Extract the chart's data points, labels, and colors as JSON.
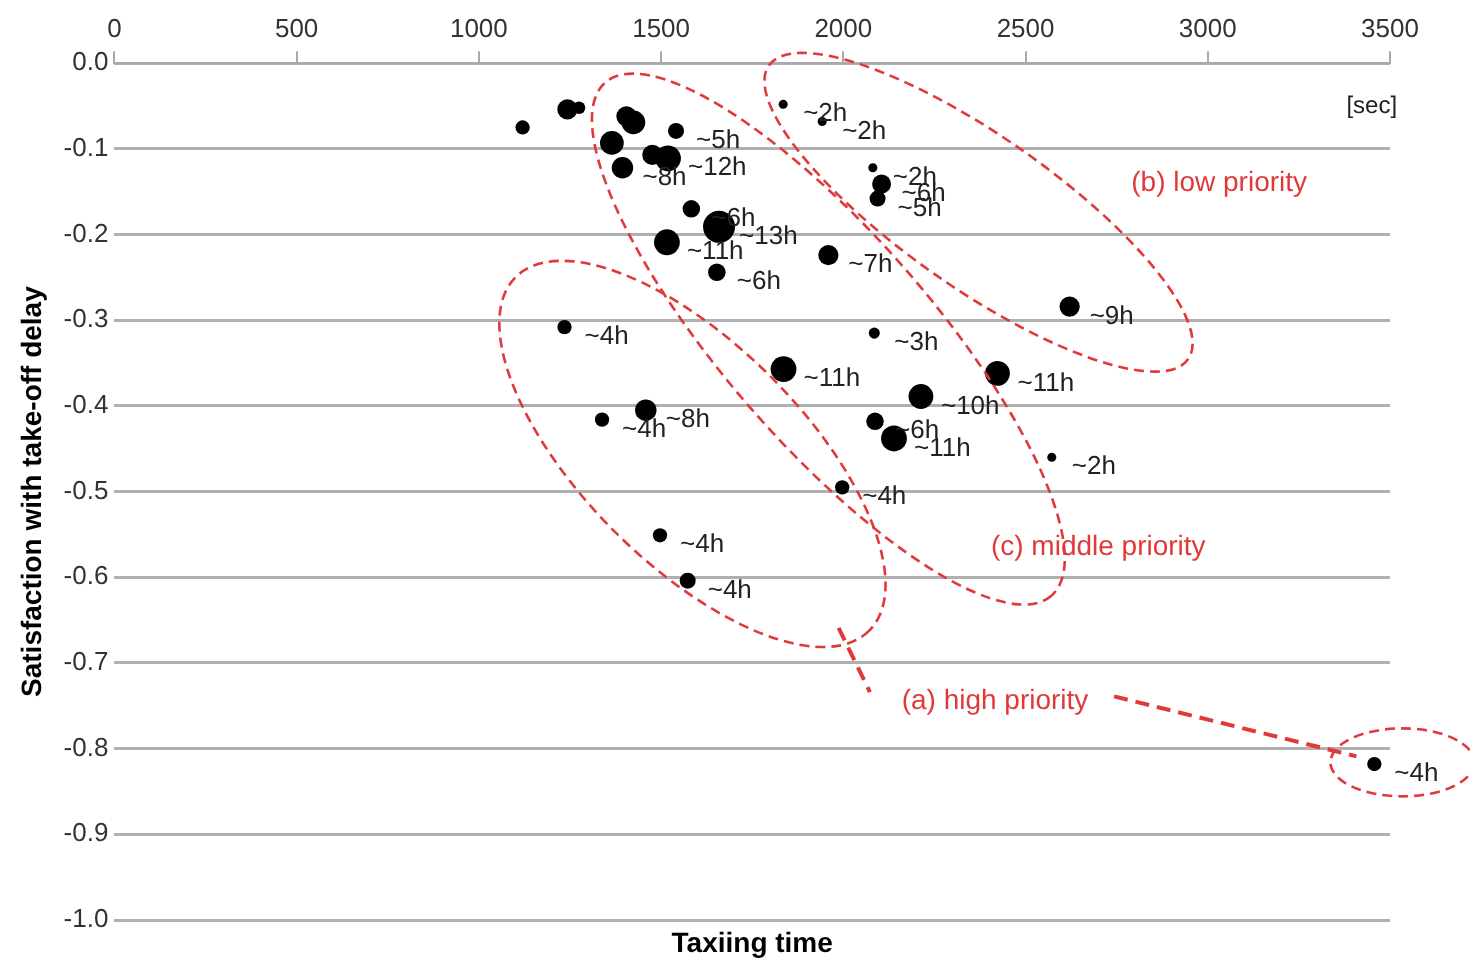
{
  "chart_data": {
    "type": "bubble",
    "xlabel": "Taxiing time",
    "ylabel": "Satisfaction with take-off delay",
    "xlim": [
      0,
      3500
    ],
    "xticks": [
      0,
      500,
      1000,
      1500,
      2000,
      2500,
      3000,
      3500
    ],
    "ylim": [
      -1,
      0
    ],
    "yticks": [
      {
        "value": 0,
        "label": "0.0"
      },
      -0.1,
      -0.2,
      -0.3,
      -0.4,
      -0.5,
      -0.6,
      -0.7,
      -0.8,
      -0.9,
      {
        "value": -1,
        "label": "-1.0"
      }
    ],
    "grid": "y",
    "legend": false,
    "marker": "circle",
    "series": [
      {
        "color": "#000000",
        "x": [
          1120,
          1243,
          1275,
          1405,
          1424,
          1541,
          1365,
          1476,
          1519,
          1394,
          1583,
          1659,
          1516,
          1653,
          1959,
          1835,
          1942,
          2081,
          2105,
          2094,
          1235,
          2085,
          1836,
          1458,
          2213,
          2621,
          2423,
          2087,
          2139,
          2572,
          1997,
          1338,
          1497,
          1573,
          3457
        ],
        "values": [
          -0.075,
          -0.054,
          -0.052,
          -0.062,
          -0.069,
          -0.079,
          -0.093,
          -0.107,
          -0.111,
          -0.122,
          -0.17,
          -0.191,
          -0.209,
          -0.244,
          -0.224,
          -0.048,
          -0.068,
          -0.122,
          -0.141,
          -0.158,
          -0.308,
          -0.315,
          -0.357,
          -0.405,
          -0.389,
          -0.284,
          -0.362,
          -0.418,
          -0.438,
          -0.46,
          -0.495,
          -0.416,
          -0.551,
          -0.604,
          -0.818
        ],
        "sizes": [
          0.2,
          0.4,
          0.15,
          0.4,
          0.55,
          0.25,
          0.55,
          0.4,
          0.65,
          0.45,
          0.3,
          1,
          0.65,
          0.3,
          0.4,
          0.08,
          0.08,
          0.08,
          0.35,
          0.25,
          0.2,
          0.12,
          0.65,
          0.45,
          0.6,
          0.4,
          0.6,
          0.3,
          0.65,
          0.08,
          0.2,
          0.2,
          0.2,
          0.25,
          0.2
        ]
      }
    ],
    "annotations": [
      "[sec]",
      "(a) high priority",
      "(b) low priority",
      "(c) middle priority",
      {
        "text": "~5h",
        "x": 1541,
        "y": -0.079
      },
      {
        "text": "~12h",
        "x": 1519,
        "y": -0.111
      },
      {
        "text": "~8h",
        "x": 1394,
        "y": -0.122
      },
      {
        "text": "~6h",
        "x": 1583,
        "y": -0.17
      },
      {
        "text": "~13h",
        "x": 1659,
        "y": -0.191
      },
      {
        "text": "~11h",
        "x": 1516,
        "y": -0.209
      },
      {
        "text": "~6h",
        "x": 1653,
        "y": -0.244
      },
      {
        "text": "~7h",
        "x": 1959,
        "y": -0.224
      },
      {
        "text": "~2h",
        "x": 1835,
        "y": -0.048
      },
      {
        "text": "~2h",
        "x": 1942,
        "y": -0.068
      },
      {
        "text": "~2h",
        "x": 2081,
        "y": -0.122
      },
      {
        "text": "~6h",
        "x": 2105,
        "y": -0.141
      },
      {
        "text": "~5h",
        "x": 2094,
        "y": -0.158
      },
      {
        "text": "~4h",
        "x": 1235,
        "y": -0.308
      },
      {
        "text": "~3h",
        "x": 2085,
        "y": -0.315
      },
      {
        "text": "~11h",
        "x": 1836,
        "y": -0.357
      },
      {
        "text": "~8h",
        "x": 1458,
        "y": -0.405
      },
      {
        "text": "~10h",
        "x": 2213,
        "y": -0.389
      },
      {
        "text": "~9h",
        "x": 2621,
        "y": -0.284
      },
      {
        "text": "~11h",
        "x": 2423,
        "y": -0.362
      },
      {
        "text": "~6h",
        "x": 2087,
        "y": -0.418
      },
      {
        "text": "~11h",
        "x": 2139,
        "y": -0.438
      },
      {
        "text": "~2h",
        "x": 2572,
        "y": -0.46
      },
      {
        "text": "~4h",
        "x": 1997,
        "y": -0.495
      },
      {
        "text": "~4h",
        "x": 1338,
        "y": -0.416
      },
      {
        "text": "~4h",
        "x": 1497,
        "y": -0.551
      },
      {
        "text": "~4h",
        "x": 1573,
        "y": -0.604
      },
      {
        "text": "~4h",
        "x": 3457,
        "y": -0.818
      }
    ]
  }
}
